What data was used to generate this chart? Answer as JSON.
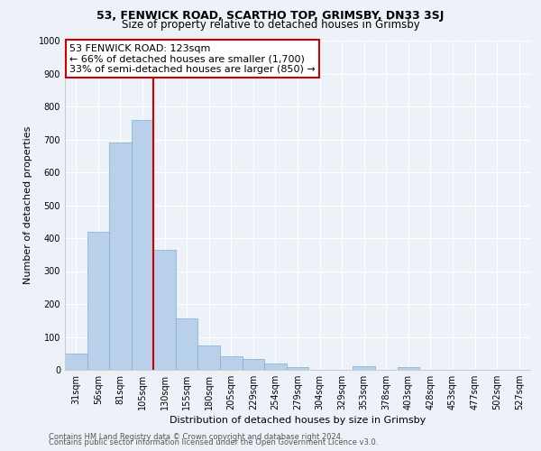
{
  "title1": "53, FENWICK ROAD, SCARTHO TOP, GRIMSBY, DN33 3SJ",
  "title2": "Size of property relative to detached houses in Grimsby",
  "xlabel": "Distribution of detached houses by size in Grimsby",
  "ylabel": "Number of detached properties",
  "bar_labels": [
    "31sqm",
    "56sqm",
    "81sqm",
    "105sqm",
    "130sqm",
    "155sqm",
    "180sqm",
    "205sqm",
    "229sqm",
    "254sqm",
    "279sqm",
    "304sqm",
    "329sqm",
    "353sqm",
    "378sqm",
    "403sqm",
    "428sqm",
    "453sqm",
    "477sqm",
    "502sqm",
    "527sqm"
  ],
  "bar_values": [
    50,
    420,
    690,
    760,
    365,
    155,
    75,
    42,
    32,
    18,
    8,
    0,
    0,
    10,
    0,
    8,
    0,
    0,
    0,
    0,
    0
  ],
  "bar_color": "#b8d0ea",
  "bar_edge_color": "#7aadd4",
  "vline_x": 3.5,
  "vline_color": "#cc0000",
  "annotation_title": "53 FENWICK ROAD: 123sqm",
  "annotation_line1": "← 66% of detached houses are smaller (1,700)",
  "annotation_line2": "33% of semi-detached houses are larger (850) →",
  "annotation_box_edge": "#cc0000",
  "annotation_box_face": "#ffffff",
  "ylim": [
    0,
    1000
  ],
  "yticks": [
    0,
    100,
    200,
    300,
    400,
    500,
    600,
    700,
    800,
    900,
    1000
  ],
  "footnote1": "Contains HM Land Registry data © Crown copyright and database right 2024.",
  "footnote2": "Contains public sector information licensed under the Open Government Licence v3.0.",
  "bg_color": "#edf2f9",
  "grid_color": "#ffffff",
  "title1_fontsize": 9,
  "title2_fontsize": 8.5,
  "xlabel_fontsize": 8,
  "ylabel_fontsize": 8,
  "tick_fontsize": 7,
  "annot_fontsize": 8,
  "footnote_fontsize": 6
}
